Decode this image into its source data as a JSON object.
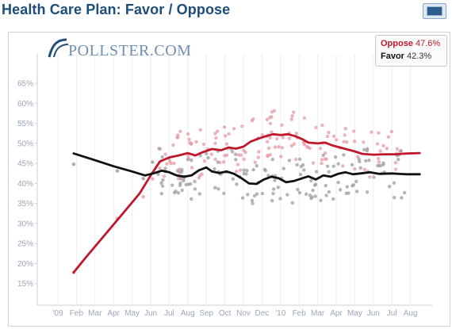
{
  "header": {
    "title": "Health Care Plan: Favor / Oppose"
  },
  "logo": {
    "text": "POLLSTER.COM"
  },
  "legend": {
    "items": [
      {
        "name": "Oppose",
        "value": "47.6%"
      },
      {
        "name": "Favor",
        "value": "42.3%"
      }
    ]
  },
  "colors": {
    "oppose": "#c0172b",
    "favor": "#111111",
    "oppose_points": "#e79aa4",
    "favor_points": "#9c9c9c",
    "title": "#1e4d7a",
    "tick": "#9aa6b8"
  },
  "icons": {
    "expand": "expand-chart-icon"
  },
  "chart_data": {
    "type": "line",
    "title": "Health Care Plan: Favor / Oppose",
    "xlabel": "",
    "ylabel": "",
    "x_tick_labels": [
      "'09",
      "Feb",
      "Mar",
      "Apr",
      "May",
      "Jun",
      "Jul",
      "Aug",
      "Sep",
      "Oct",
      "Nov",
      "Dec",
      "'10",
      "Feb",
      "Mar",
      "Apr",
      "May",
      "Jun",
      "Jul",
      "Aug"
    ],
    "y_tick_labels": [
      "65%",
      "60%",
      "55%",
      "50%",
      "45%",
      "40%",
      "35%",
      "30%",
      "25%",
      "20%",
      "15%"
    ],
    "ylim": [
      10,
      68
    ],
    "xlim": [
      0,
      19.8
    ],
    "grid": "vertical",
    "legend_position": "top-right",
    "series": [
      {
        "name": "Oppose",
        "color": "#c0172b",
        "points": [
          [
            0.85,
            17.8
          ],
          [
            1.5,
            21.5
          ],
          [
            2.5,
            27.0
          ],
          [
            3.5,
            32.5
          ],
          [
            4.4,
            37.5
          ],
          [
            5.0,
            42.0
          ],
          [
            5.5,
            45.5
          ],
          [
            6.0,
            46.5
          ],
          [
            6.5,
            47.0
          ],
          [
            7.0,
            47.6
          ],
          [
            7.4,
            47.0
          ],
          [
            7.8,
            47.8
          ],
          [
            8.3,
            48.6
          ],
          [
            8.8,
            48.3
          ],
          [
            9.2,
            49.0
          ],
          [
            9.6,
            48.7
          ],
          [
            10.0,
            49.2
          ],
          [
            10.4,
            50.5
          ],
          [
            10.8,
            51.2
          ],
          [
            11.2,
            51.8
          ],
          [
            11.6,
            52.3
          ],
          [
            12.0,
            52.1
          ],
          [
            12.4,
            52.3
          ],
          [
            12.8,
            51.8
          ],
          [
            13.2,
            51.0
          ],
          [
            13.5,
            50.2
          ],
          [
            14.0,
            50.0
          ],
          [
            14.4,
            50.2
          ],
          [
            14.8,
            49.5
          ],
          [
            15.2,
            49.0
          ],
          [
            15.6,
            48.5
          ],
          [
            16.0,
            48.0
          ],
          [
            16.4,
            47.4
          ],
          [
            17.0,
            47.2
          ],
          [
            17.6,
            47.3
          ],
          [
            18.2,
            47.3
          ],
          [
            18.8,
            47.5
          ],
          [
            19.5,
            47.6
          ]
        ]
      },
      {
        "name": "Favor",
        "color": "#111111",
        "points": [
          [
            0.85,
            47.5
          ],
          [
            2.0,
            45.8
          ],
          [
            3.0,
            44.3
          ],
          [
            4.0,
            43.0
          ],
          [
            4.7,
            42.0
          ],
          [
            5.2,
            42.6
          ],
          [
            5.6,
            43.2
          ],
          [
            6.0,
            42.8
          ],
          [
            6.4,
            42.0
          ],
          [
            6.8,
            41.7
          ],
          [
            7.2,
            42.0
          ],
          [
            7.6,
            43.3
          ],
          [
            8.0,
            44.0
          ],
          [
            8.3,
            43.0
          ],
          [
            8.7,
            42.6
          ],
          [
            9.1,
            43.0
          ],
          [
            9.5,
            42.4
          ],
          [
            9.9,
            41.3
          ],
          [
            10.3,
            40.0
          ],
          [
            10.7,
            39.9
          ],
          [
            11.1,
            41.0
          ],
          [
            11.5,
            41.7
          ],
          [
            11.9,
            41.3
          ],
          [
            12.3,
            40.3
          ],
          [
            12.7,
            40.6
          ],
          [
            13.1,
            41.2
          ],
          [
            13.5,
            41.8
          ],
          [
            13.9,
            41.0
          ],
          [
            14.3,
            42.0
          ],
          [
            14.7,
            41.7
          ],
          [
            15.1,
            42.4
          ],
          [
            15.5,
            42.8
          ],
          [
            15.9,
            42.3
          ],
          [
            16.3,
            42.5
          ],
          [
            16.8,
            42.8
          ],
          [
            17.3,
            42.4
          ],
          [
            18.0,
            42.5
          ],
          [
            18.8,
            42.3
          ],
          [
            19.5,
            42.3
          ]
        ]
      }
    ]
  }
}
